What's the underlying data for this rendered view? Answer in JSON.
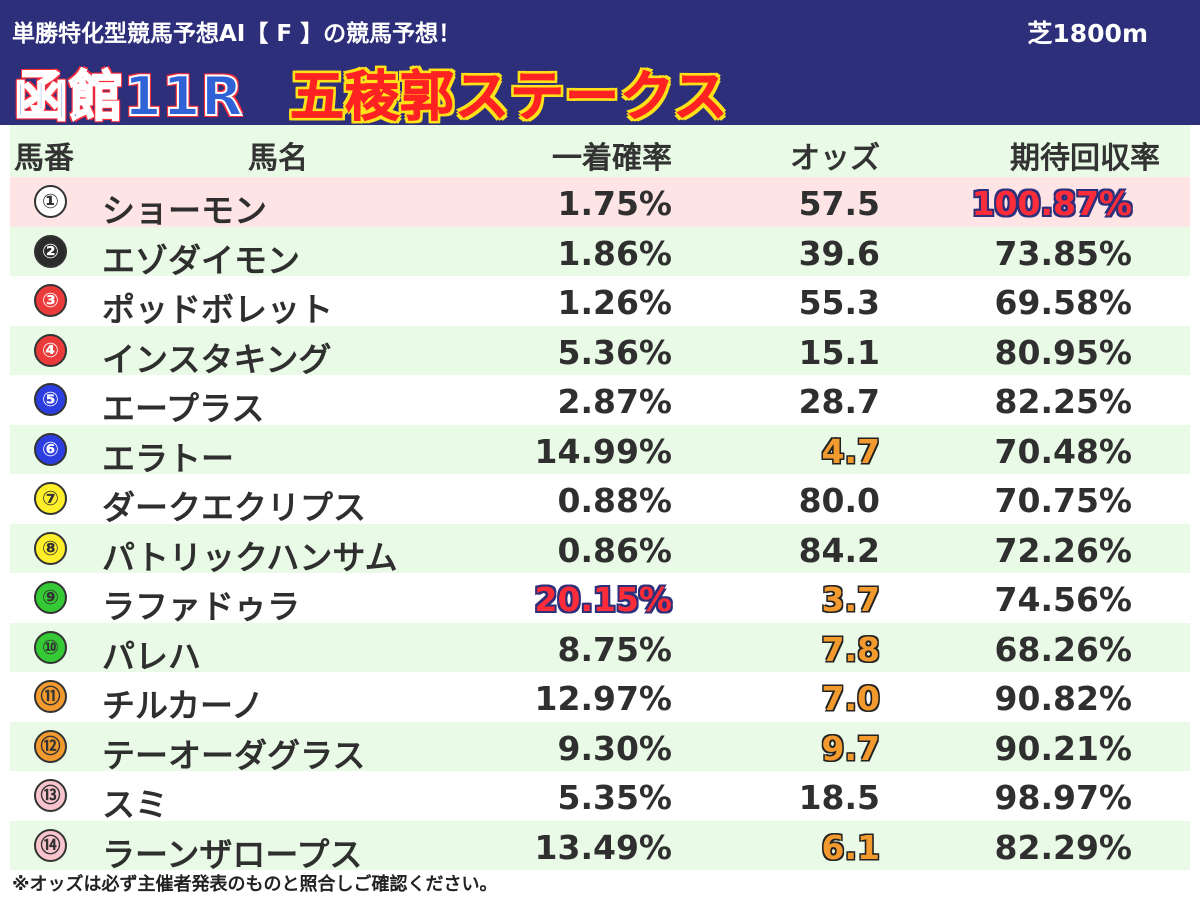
{
  "header": {
    "subtitle": "単勝特化型競馬予想AI【 F 】の競馬予想！",
    "course": "芝1800m",
    "race_number": "函館11R",
    "race_name": "五稜郭ステークス"
  },
  "columns": {
    "number": "馬番",
    "name": "馬名",
    "win_probability": "一着確率",
    "odds": "オッズ",
    "expected_return": "期待回収率"
  },
  "colors": {
    "header_bg": "#2d2f7a",
    "row_green": "#e9fbe6",
    "row_pink": "#ffe4e6",
    "highlight_red": "#ff2d3a",
    "odds_orange": "#f29a2e"
  },
  "horses": [
    {
      "badge": "①",
      "badge_bg": "#ffffff",
      "badge_fg": "#333333",
      "name": "ショーモン",
      "prob": "1.75%",
      "odds": "57.5",
      "ret": "100.87%",
      "hot_odds": false,
      "top_prob": false,
      "top_ret": true
    },
    {
      "badge": "②",
      "badge_bg": "#2b2b2b",
      "badge_fg": "#ffffff",
      "name": "エゾダイモン",
      "prob": "1.86%",
      "odds": "39.6",
      "ret": "73.85%",
      "hot_odds": false,
      "top_prob": false,
      "top_ret": false
    },
    {
      "badge": "③",
      "badge_bg": "#ea3a3a",
      "badge_fg": "#ffffff",
      "name": "ポッドボレット",
      "prob": "1.26%",
      "odds": "55.3",
      "ret": "69.58%",
      "hot_odds": false,
      "top_prob": false,
      "top_ret": false
    },
    {
      "badge": "④",
      "badge_bg": "#ea3a3a",
      "badge_fg": "#ffffff",
      "name": "インスタキング",
      "prob": "5.36%",
      "odds": "15.1",
      "ret": "80.95%",
      "hot_odds": false,
      "top_prob": false,
      "top_ret": false
    },
    {
      "badge": "⑤",
      "badge_bg": "#2c3ee0",
      "badge_fg": "#ffffff",
      "name": "エープラス",
      "prob": "2.87%",
      "odds": "28.7",
      "ret": "82.25%",
      "hot_odds": false,
      "top_prob": false,
      "top_ret": false
    },
    {
      "badge": "⑥",
      "badge_bg": "#2c3ee0",
      "badge_fg": "#ffffff",
      "name": "エラトー",
      "prob": "14.99%",
      "odds": "4.7",
      "ret": "70.48%",
      "hot_odds": true,
      "top_prob": false,
      "top_ret": false
    },
    {
      "badge": "⑦",
      "badge_bg": "#ffef2a",
      "badge_fg": "#333333",
      "name": "ダークエクリプス",
      "prob": "0.88%",
      "odds": "80.0",
      "ret": "70.75%",
      "hot_odds": false,
      "top_prob": false,
      "top_ret": false
    },
    {
      "badge": "⑧",
      "badge_bg": "#ffef2a",
      "badge_fg": "#333333",
      "name": "パトリックハンサム",
      "prob": "0.86%",
      "odds": "84.2",
      "ret": "72.26%",
      "hot_odds": false,
      "top_prob": false,
      "top_ret": false
    },
    {
      "badge": "⑨",
      "badge_bg": "#35c935",
      "badge_fg": "#333333",
      "name": "ラファドゥラ",
      "prob": "20.15%",
      "odds": "3.7",
      "ret": "74.56%",
      "hot_odds": true,
      "top_prob": true,
      "top_ret": false
    },
    {
      "badge": "⑩",
      "badge_bg": "#35c935",
      "badge_fg": "#333333",
      "name": "パレハ",
      "prob": "8.75%",
      "odds": "7.8",
      "ret": "68.26%",
      "hot_odds": true,
      "top_prob": false,
      "top_ret": false
    },
    {
      "badge": "⑪",
      "badge_bg": "#f29a2e",
      "badge_fg": "#333333",
      "name": "チルカーノ",
      "prob": "12.97%",
      "odds": "7.0",
      "ret": "90.82%",
      "hot_odds": true,
      "top_prob": false,
      "top_ret": false
    },
    {
      "badge": "⑫",
      "badge_bg": "#f29a2e",
      "badge_fg": "#333333",
      "name": "テーオーダグラス",
      "prob": "9.30%",
      "odds": "9.7",
      "ret": "90.21%",
      "hot_odds": true,
      "top_prob": false,
      "top_ret": false
    },
    {
      "badge": "⑬",
      "badge_bg": "#f9c4cb",
      "badge_fg": "#333333",
      "name": "スミ",
      "prob": "5.35%",
      "odds": "18.5",
      "ret": "98.97%",
      "hot_odds": false,
      "top_prob": false,
      "top_ret": false
    },
    {
      "badge": "⑭",
      "badge_bg": "#f9c4cb",
      "badge_fg": "#333333",
      "name": "ラーンザロープス",
      "prob": "13.49%",
      "odds": "6.1",
      "ret": "82.29%",
      "hot_odds": true,
      "top_prob": false,
      "top_ret": false
    }
  ],
  "footnote": "※オッズは必ず主催者発表のものと照合しご確認ください。"
}
